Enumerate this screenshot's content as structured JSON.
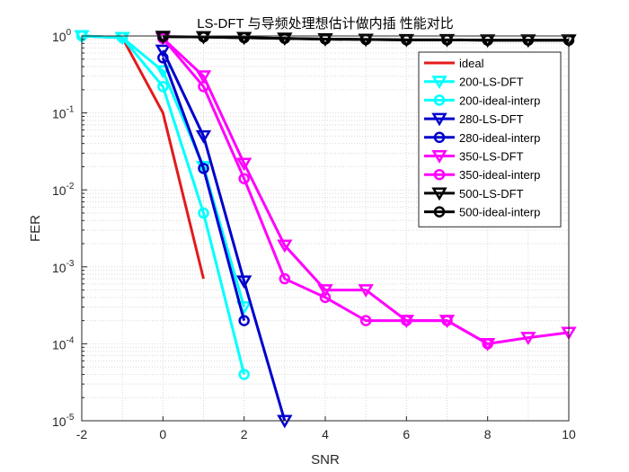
{
  "chart_data": {
    "type": "line",
    "title": "LS-DFT 与导频处理想估计做内插 性能对比",
    "xlabel": "SNR",
    "ylabel": "FER",
    "xlim": [
      -2,
      10
    ],
    "ylim": [
      1e-05,
      1
    ],
    "yscale": "log",
    "grid": true,
    "legend_position": "top-right",
    "x_ticks": [
      -2,
      0,
      2,
      4,
      6,
      8,
      10
    ],
    "x_tick_labels": [
      "-2",
      "0",
      "2",
      "4",
      "6",
      "8",
      "10"
    ],
    "y_ticks": [
      1e-05,
      0.0001,
      0.001,
      0.01,
      0.1,
      1
    ],
    "y_tick_labels": [
      {
        "base": "10",
        "exp": "-5"
      },
      {
        "base": "10",
        "exp": "-4"
      },
      {
        "base": "10",
        "exp": "-3"
      },
      {
        "base": "10",
        "exp": "-2"
      },
      {
        "base": "10",
        "exp": "-1"
      },
      {
        "base": "10",
        "exp": "0"
      }
    ],
    "series": [
      {
        "name": "ideal",
        "color": "#e31a1c",
        "marker": "none",
        "x": [
          -2,
          -1,
          0,
          1
        ],
        "y": [
          1.0,
          0.95,
          0.1,
          0.0007
        ]
      },
      {
        "name": "200-LS-DFT",
        "color": "#00ffff",
        "marker": "triangle-down",
        "x": [
          -2,
          -1,
          0,
          1,
          2
        ],
        "y": [
          1.0,
          0.95,
          0.35,
          0.02,
          0.0003
        ]
      },
      {
        "name": "200-ideal-interp",
        "color": "#00ffff",
        "marker": "circle",
        "x": [
          -2,
          -1,
          0,
          1,
          2
        ],
        "y": [
          1.0,
          0.95,
          0.22,
          0.005,
          4e-05
        ]
      },
      {
        "name": "280-LS-DFT",
        "color": "#0000cd",
        "marker": "triangle-down",
        "x": [
          0,
          1,
          2,
          3
        ],
        "y": [
          0.65,
          0.05,
          0.00065,
          1e-05
        ]
      },
      {
        "name": "280-ideal-interp",
        "color": "#0000cd",
        "marker": "circle",
        "x": [
          0,
          1,
          2
        ],
        "y": [
          0.52,
          0.019,
          0.0002
        ]
      },
      {
        "name": "350-LS-DFT",
        "color": "#ff00ff",
        "marker": "triangle-down",
        "x": [
          0,
          1,
          2,
          3,
          4,
          5,
          6,
          7,
          8,
          9,
          10
        ],
        "y": [
          0.93,
          0.3,
          0.022,
          0.0019,
          0.0005,
          0.0005,
          0.0002,
          0.0002,
          0.0001,
          0.00012,
          0.00014
        ]
      },
      {
        "name": "350-ideal-interp",
        "color": "#ff00ff",
        "marker": "circle",
        "x": [
          0,
          1,
          2,
          3,
          4,
          5,
          6,
          7,
          8
        ],
        "y": [
          0.93,
          0.22,
          0.014,
          0.0007,
          0.0004,
          0.0002,
          0.0002,
          0.0002,
          0.0001
        ]
      },
      {
        "name": "500-LS-DFT",
        "color": "#000000",
        "marker": "triangle-down",
        "x": [
          0,
          1,
          2,
          3,
          4,
          5,
          6,
          7,
          8,
          9,
          10
        ],
        "y": [
          0.98,
          0.97,
          0.95,
          0.93,
          0.91,
          0.9,
          0.89,
          0.89,
          0.88,
          0.88,
          0.88
        ]
      },
      {
        "name": "500-ideal-interp",
        "color": "#000000",
        "marker": "circle",
        "x": [
          0,
          1,
          2,
          3,
          4,
          5,
          6,
          7,
          8,
          9,
          10
        ],
        "y": [
          0.98,
          0.97,
          0.95,
          0.93,
          0.91,
          0.9,
          0.89,
          0.89,
          0.88,
          0.88,
          0.88
        ]
      }
    ]
  }
}
